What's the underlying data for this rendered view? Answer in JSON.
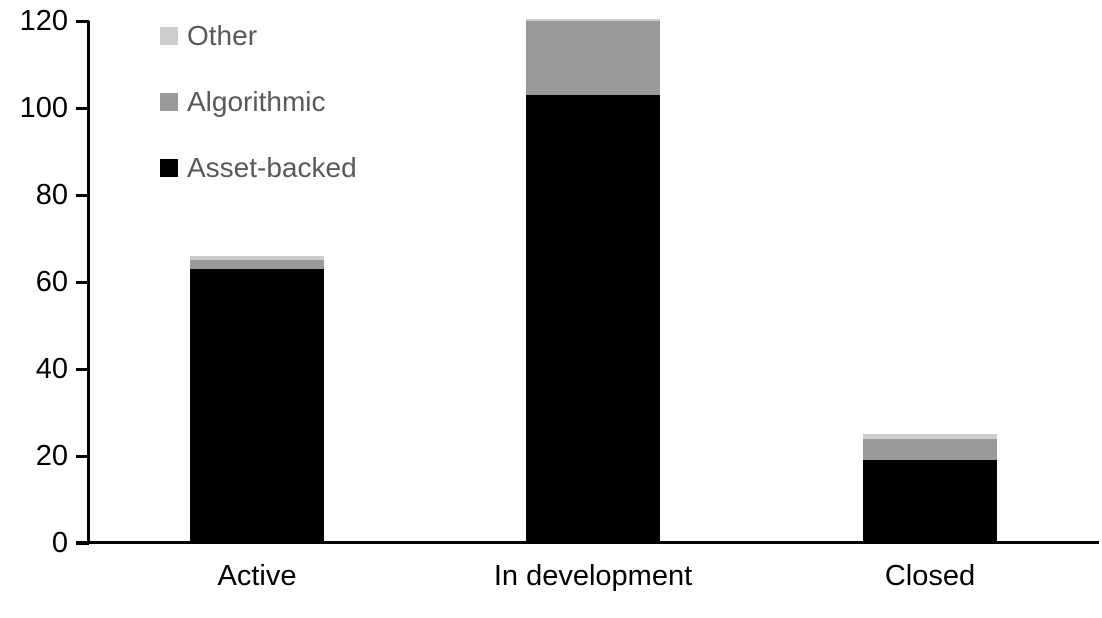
{
  "chart_data": {
    "type": "bar",
    "stacked": true,
    "title": "",
    "xlabel": "",
    "ylabel": "",
    "categories": [
      "Active",
      "In development",
      "Closed"
    ],
    "series": [
      {
        "name": "Asset-backed",
        "color": "#000000",
        "values": [
          63,
          103,
          19
        ]
      },
      {
        "name": "Algorithmic",
        "color": "#999999",
        "values": [
          2,
          17,
          5
        ]
      },
      {
        "name": "Other",
        "color": "#cccccc",
        "values": [
          1,
          0.5,
          1
        ]
      }
    ],
    "ylim": [
      0,
      120
    ],
    "yticks": [
      0,
      20,
      40,
      60,
      80,
      100,
      120
    ],
    "grid": false,
    "legend_position": "top-left",
    "legend_order": [
      "Other",
      "Algorithmic",
      "Asset-backed"
    ],
    "colors": {
      "axis": "#000000",
      "tick_label_text": "#000000",
      "category_label_text": "#000000",
      "legend_text": "#595959",
      "background": "#ffffff"
    }
  }
}
